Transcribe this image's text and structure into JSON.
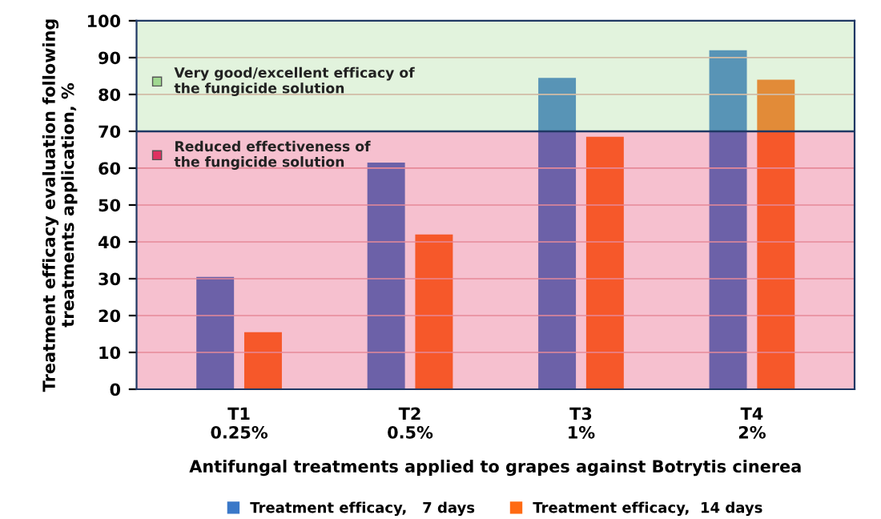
{
  "chart_data": {
    "type": "bar",
    "ylabel": "Treatment efficacy evaluation following treatments application, %",
    "xlabel": "Antifungal treatments applied to grapes against Botrytis cinerea",
    "categories": [
      "T1\n0.25%",
      "T2\n0.5%",
      "T3\n1%",
      "T4\n2%"
    ],
    "series": [
      {
        "name": "Treatment efficacy,   7 days",
        "color": "#3a78c8",
        "values": [
          30.5,
          61.5,
          84.5,
          92
        ]
      },
      {
        "name": "Treatment efficacy,  14 days",
        "color": "#ff6a13",
        "values": [
          15.5,
          42,
          68.5,
          84
        ]
      }
    ],
    "ylim": [
      0,
      100
    ],
    "yticks": [
      0,
      10,
      20,
      30,
      40,
      50,
      60,
      70,
      80,
      90,
      100
    ],
    "grid": "y",
    "legend": "bottom",
    "bands": [
      {
        "axis": "y",
        "from": 70,
        "to": 100,
        "label": "Very good/excellent efficacy of\nthe fungicide solution",
        "color": "#a0d890"
      },
      {
        "axis": "y",
        "from": 0,
        "to": 70,
        "label": "Reduced effectiveness of\nthe fungicide solution",
        "color": "#e03060"
      }
    ],
    "ref_lines": [
      {
        "axis": "y",
        "value": 70,
        "label": null,
        "color": "#1f3864"
      }
    ]
  }
}
